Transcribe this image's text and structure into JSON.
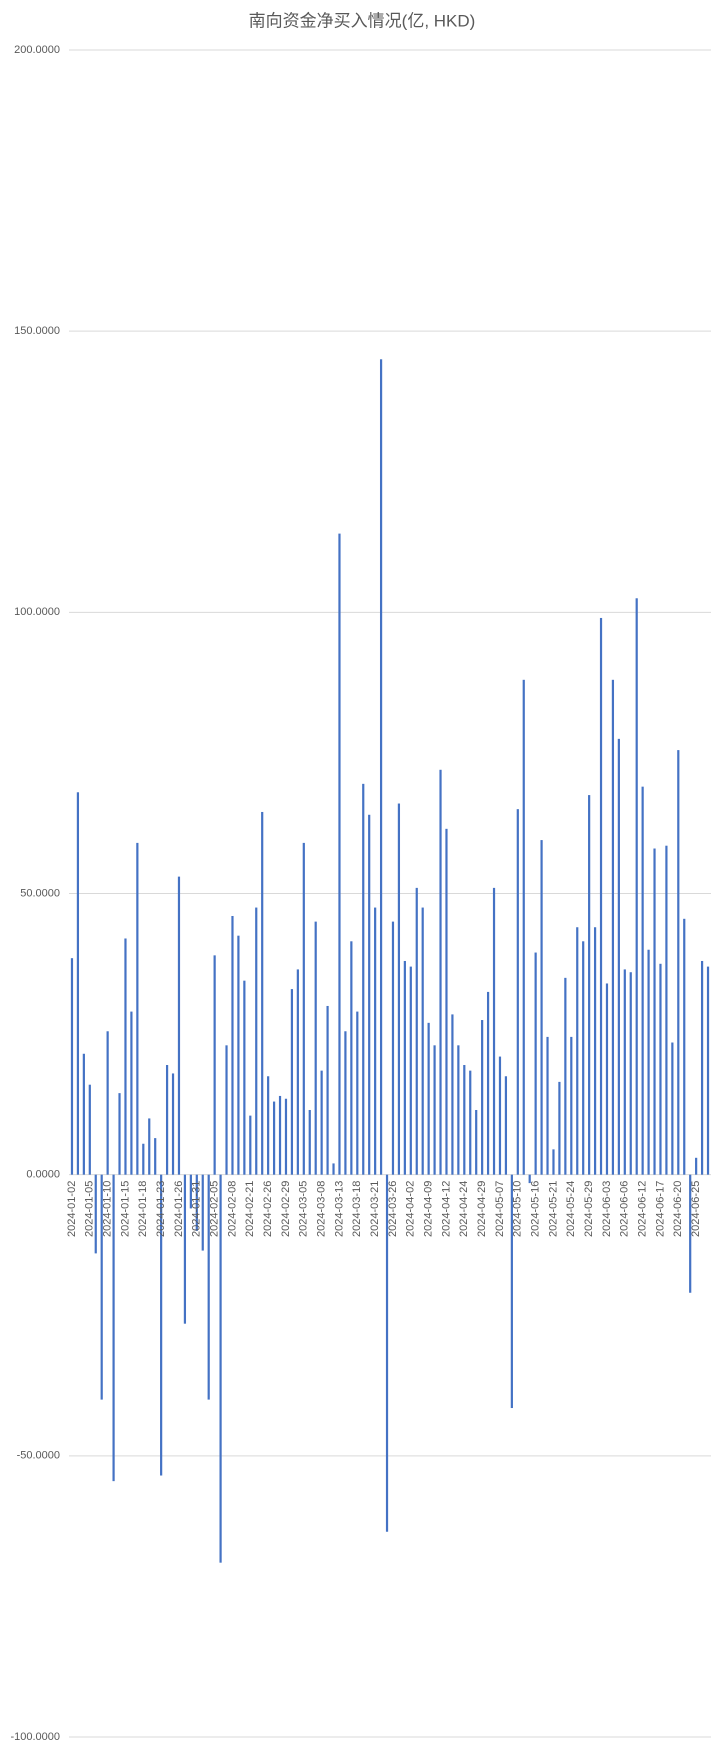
{
  "chart_data": {
    "type": "bar",
    "title": "南向资金净买入情况(亿, HKD)",
    "categories": [
      "2024-01-02",
      null,
      null,
      "2024-01-05",
      null,
      null,
      "2024-01-10",
      null,
      null,
      "2024-01-15",
      null,
      null,
      "2024-01-18",
      null,
      null,
      "2024-01-23",
      null,
      null,
      "2024-01-26",
      null,
      null,
      "2024-01-31",
      null,
      null,
      "2024-02-05",
      null,
      null,
      "2024-02-08",
      null,
      null,
      "2024-02-21",
      null,
      null,
      "2024-02-26",
      null,
      null,
      "2024-02-29",
      null,
      null,
      "2024-03-05",
      null,
      null,
      "2024-03-08",
      null,
      null,
      "2024-03-13",
      null,
      null,
      "2024-03-18",
      null,
      null,
      "2024-03-21",
      null,
      null,
      "2024-03-26",
      null,
      null,
      "2024-04-02",
      null,
      null,
      "2024-04-09",
      null,
      null,
      "2024-04-12",
      null,
      null,
      "2024-04-24",
      null,
      null,
      "2024-04-29",
      null,
      null,
      "2024-05-07",
      null,
      null,
      "2024-05-10",
      null,
      null,
      "2024-05-16",
      null,
      null,
      "2024-05-21",
      null,
      null,
      "2024-05-24",
      null,
      null,
      "2024-05-29",
      null,
      null,
      "2024-06-03",
      null,
      null,
      "2024-06-06",
      null,
      null,
      "2024-06-12",
      null,
      null,
      "2024-06-17",
      null,
      null,
      "2024-06-20",
      null,
      null,
      "2024-06-25",
      null,
      null
    ],
    "values": [
      38.5,
      68,
      21.5,
      16,
      -14,
      -40,
      25.5,
      -54.5,
      14.5,
      42,
      29,
      59,
      5.5,
      10,
      6.5,
      -53.5,
      19.5,
      18,
      53,
      -26.5,
      -6,
      -10,
      -13.5,
      -40,
      39,
      -69,
      23,
      46,
      42.5,
      34.5,
      10.5,
      47.5,
      64.5,
      17.5,
      13,
      14,
      13.5,
      33,
      36.5,
      59,
      11.5,
      45,
      18.5,
      30,
      2,
      114,
      25.5,
      41.5,
      29,
      69.5,
      64,
      47.5,
      145,
      -63.5,
      45,
      66,
      38,
      37,
      51,
      47.5,
      27,
      23,
      72,
      61.5,
      28.5,
      23,
      19.5,
      18.5,
      11.5,
      27.5,
      32.5,
      51,
      21,
      17.5,
      -41.5,
      65,
      88,
      -1.5,
      39.5,
      59.5,
      24.5,
      4.5,
      16.5,
      35,
      24.5,
      44,
      41.5,
      67.5,
      44,
      99,
      34,
      88,
      77.5,
      36.5,
      36,
      102.5,
      69,
      40,
      58,
      37.5,
      58.5,
      23.5,
      75.5,
      45.5,
      -21,
      3,
      38,
      37
    ],
    "color": "#4472c4",
    "ylim": [
      -100,
      200
    ],
    "yticks": [
      {
        "value": -100,
        "label": "-100.0000"
      },
      {
        "value": -50,
        "label": "-50.0000"
      },
      {
        "value": 0,
        "label": "0.0000"
      },
      {
        "value": 50,
        "label": "50.0000"
      },
      {
        "value": 100,
        "label": "100.0000"
      },
      {
        "value": 150,
        "label": "150.0000"
      },
      {
        "value": 200,
        "label": "200.0000"
      }
    ],
    "grid": true
  }
}
